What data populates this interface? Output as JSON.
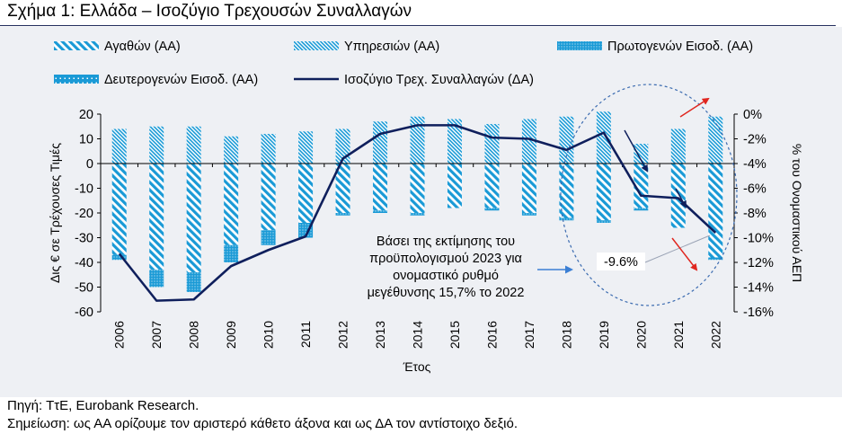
{
  "title": "Σχήμα 1: Ελλάδα – Ισοζύγιο Τρεχουσών Συναλλαγών",
  "footer": {
    "source": "Πηγή: ΤτΕ, Eurobank Research.",
    "note": "Σημείωση: ως ΑΑ ορίζουμε τον αριστερό κάθετο άξονα και ως ΔΑ τον αντίστοιχο δεξιό."
  },
  "colors": {
    "bar": "#1a9ad6",
    "line": "#0f1f5c",
    "arrow_red": "#e0261f",
    "arrow_dark": "#0f1f5c",
    "annotation": "#3b7fd4",
    "circle": "#3b6bb0"
  },
  "chart_data": {
    "type": "bar",
    "categories": [
      "2006",
      "2007",
      "2008",
      "2009",
      "2010",
      "2011",
      "2012",
      "2013",
      "2014",
      "2015",
      "2016",
      "2017",
      "2018",
      "2019",
      "2020",
      "2021",
      "2022"
    ],
    "xlabel": "Έτος",
    "ylabel": "Δις € σε Τρέχουσες Τιμές",
    "y2label": "% του Ονομαστικού ΑΕΠ",
    "ylim": [
      -60,
      20
    ],
    "yticks": [
      "20",
      "10",
      "0",
      "-10",
      "-20",
      "-30",
      "-40",
      "-50",
      "-60"
    ],
    "y2lim": [
      -16,
      0
    ],
    "y2ticks": [
      "0%",
      "-2%",
      "-4%",
      "-6%",
      "-8%",
      "-10%",
      "-12%",
      "-14%",
      "-16%"
    ],
    "legend": [
      "Αγαθών (ΑΑ)",
      "Υπηρεσιών (ΑΑ)",
      "Πρωτογενών Εισοδ. (ΑΑ)",
      "Δευτερογενών Εισοδ. (ΑΑ)",
      "Ισοζύγιο Τρεχ. Συναλλαγών (ΔΑ)"
    ],
    "series": [
      {
        "name": "Αγαθών (ΑΑ)",
        "axis": "left",
        "values": [
          -37,
          -43,
          -44,
          -33,
          -27,
          -24,
          -20,
          -19,
          -20,
          -18,
          -18,
          -20,
          -22,
          -23,
          -18,
          -26,
          -38
        ]
      },
      {
        "name": "Υπηρεσιών (ΑΑ)",
        "axis": "left",
        "values": [
          14,
          15,
          15,
          11,
          12,
          13,
          14,
          17,
          19,
          18,
          16,
          18,
          19,
          21,
          8,
          14,
          19
        ]
      },
      {
        "name": "Πρωτογενών Εισοδ. (ΑΑ)",
        "axis": "left",
        "values": [
          -2,
          -7,
          -8,
          -7,
          -6,
          -6,
          -1,
          -1,
          -1,
          0,
          -1,
          -1,
          -1,
          -1,
          -1,
          0,
          -1
        ]
      },
      {
        "name": "Δευτερογενών Εισοδ. (ΑΑ)",
        "axis": "left",
        "values": [
          0,
          0,
          0,
          0,
          0,
          0,
          0,
          0,
          0,
          0,
          0,
          0,
          0,
          0,
          0,
          0,
          0
        ]
      },
      {
        "name": "Ισοζύγιο Τρεχ. Συναλλαγών (ΔΑ)",
        "axis": "right",
        "type": "line",
        "values": [
          -11.3,
          -15.1,
          -15.0,
          -12.3,
          -11.0,
          -9.9,
          -3.6,
          -1.6,
          -0.9,
          -0.9,
          -1.9,
          -2.0,
          -2.9,
          -1.5,
          -6.6,
          -6.8,
          -9.6
        ]
      }
    ],
    "annotations": {
      "callout": [
        "Βάσει της εκτίμησης του",
        "προϋπολογισμού 2023 για",
        "ονομαστικό ρυθμό",
        "μεγέθυνσης 15,7% το 2022"
      ],
      "value_label": "-9.6%"
    }
  }
}
